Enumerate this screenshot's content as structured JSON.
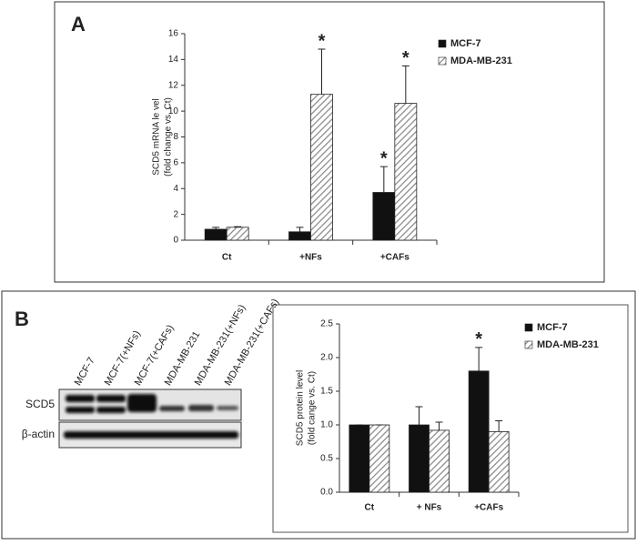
{
  "panels": [
    "A",
    "B"
  ],
  "blot": {
    "lanes": [
      "MCF-7",
      "MCF-7(+NFs)",
      "MCF-7(+CAFs)",
      "MDA-MB-231",
      "MDA-MB-231(+NFs)",
      "MDA-MB-231(+CAFs)"
    ],
    "proteins": [
      "SCD5",
      "β-actin"
    ]
  },
  "chart_data": [
    {
      "type": "bar",
      "ylabel": [
        "SCD5 mRNA le vel",
        "(fold change vs. Ct)"
      ],
      "categories": [
        "Ct",
        "+NFs",
        "+CAFs"
      ],
      "series": [
        {
          "name": "MCF-7",
          "color": "#111111",
          "hatch": false,
          "values": [
            0.85,
            0.65,
            3.7
          ],
          "errors": [
            0.15,
            0.35,
            2.0
          ]
        },
        {
          "name": "MDA-MB-231",
          "color": "#8a8a8a",
          "hatch": true,
          "values": [
            1.0,
            11.3,
            10.6
          ],
          "errors": [
            0.05,
            3.5,
            2.9
          ]
        }
      ],
      "annotations": [
        {
          "text": "*",
          "series": 1,
          "category": 1
        },
        {
          "text": "*",
          "series": 0,
          "category": 2
        },
        {
          "text": "*",
          "series": 1,
          "category": 2
        }
      ],
      "ylim": [
        0,
        16
      ],
      "yticks": [
        0,
        2,
        4,
        6,
        8,
        10,
        12,
        14,
        16
      ]
    },
    {
      "type": "bar",
      "ylabel": [
        "SCD5 protein level",
        "(fold cange vs. Ct)"
      ],
      "categories": [
        "Ct",
        "+ NFs",
        "+CAFs"
      ],
      "series": [
        {
          "name": "MCF-7",
          "color": "#111111",
          "hatch": false,
          "values": [
            1.0,
            1.0,
            1.8
          ],
          "errors": [
            0.0,
            0.27,
            0.35
          ]
        },
        {
          "name": "MDA-MB-231",
          "color": "#8a8a8a",
          "hatch": true,
          "values": [
            1.0,
            0.92,
            0.9
          ],
          "errors": [
            0.0,
            0.12,
            0.16
          ]
        }
      ],
      "annotations": [
        {
          "text": "*",
          "series": 0,
          "category": 2
        }
      ],
      "ylim": [
        0,
        2.5
      ],
      "yticks": [
        {
          "value": 0,
          "label": "0.0"
        },
        {
          "value": 0.5,
          "label": "0.5"
        },
        {
          "value": 1,
          "label": "1.0"
        },
        {
          "value": 1.5,
          "label": "1.5"
        },
        {
          "value": 2,
          "label": "2.0"
        },
        {
          "value": 2.5,
          "label": "2.5"
        }
      ]
    }
  ]
}
